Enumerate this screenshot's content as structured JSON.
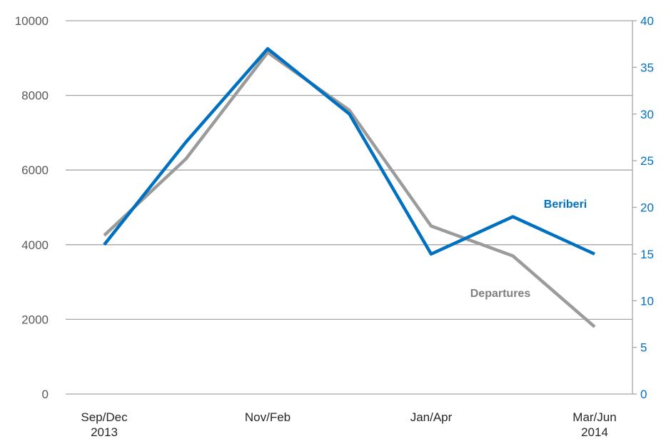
{
  "chart_data": {
    "type": "line",
    "x_tick_labels": [
      {
        "line1": "Sep/Dec",
        "line2": "2013",
        "index": 0
      },
      {
        "line1": "Nov/Feb",
        "line2": "",
        "index": 2
      },
      {
        "line1": "Jan/Apr",
        "line2": "",
        "index": 4
      },
      {
        "line1": "Mar/Jun",
        "line2": "2014",
        "index": 6
      }
    ],
    "y_left": {
      "range": [
        0,
        10000
      ],
      "ticks": [
        0,
        2000,
        4000,
        6000,
        8000,
        10000
      ],
      "tick_labels": [
        "0",
        "2000",
        "4000",
        "6000",
        "8000",
        "10000"
      ]
    },
    "y_right": {
      "range": [
        0,
        40
      ],
      "ticks": [
        0,
        5,
        10,
        15,
        20,
        25,
        30,
        35,
        40
      ],
      "tick_labels": [
        "0",
        "5",
        "10",
        "15",
        "20",
        "25",
        "30",
        "35",
        "40"
      ]
    },
    "grid": "horizontal",
    "series": [
      {
        "name": "Departures",
        "axis": "left",
        "color": "#9b9b9b",
        "values": [
          4250,
          6300,
          9150,
          7600,
          4500,
          3700,
          1800
        ]
      },
      {
        "name": "Beriberi",
        "axis": "right",
        "color": "#0070c0",
        "values": [
          16,
          27,
          37,
          30,
          15,
          19,
          15
        ]
      }
    ],
    "colors": {
      "left_axis_text": "#595959",
      "right_axis_text": "#0070c0",
      "grid": "#a6a6a6"
    }
  }
}
